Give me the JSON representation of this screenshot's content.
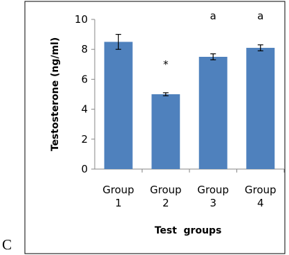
{
  "panel_label": "C",
  "chart_data": {
    "type": "bar",
    "categories": [
      "Group 1",
      "Group 2",
      "Group 3",
      "Group 4"
    ],
    "category_lines": [
      [
        "Group",
        "1"
      ],
      [
        "Group",
        "2"
      ],
      [
        "Group",
        "3"
      ],
      [
        "Group",
        "4"
      ]
    ],
    "values": [
      8.5,
      5.0,
      7.5,
      8.1
    ],
    "errors": [
      0.5,
      0.1,
      0.2,
      0.2
    ],
    "annotations": [
      "",
      "*",
      "a",
      "a"
    ],
    "ylim": [
      0,
      10
    ],
    "yticks": [
      0,
      2,
      4,
      6,
      8,
      10
    ],
    "xlabel": "Test  groups",
    "ylabel": "Testosterone (ng/ml)",
    "grid": false,
    "legend": "none",
    "bar_color": "#4f81bd"
  }
}
